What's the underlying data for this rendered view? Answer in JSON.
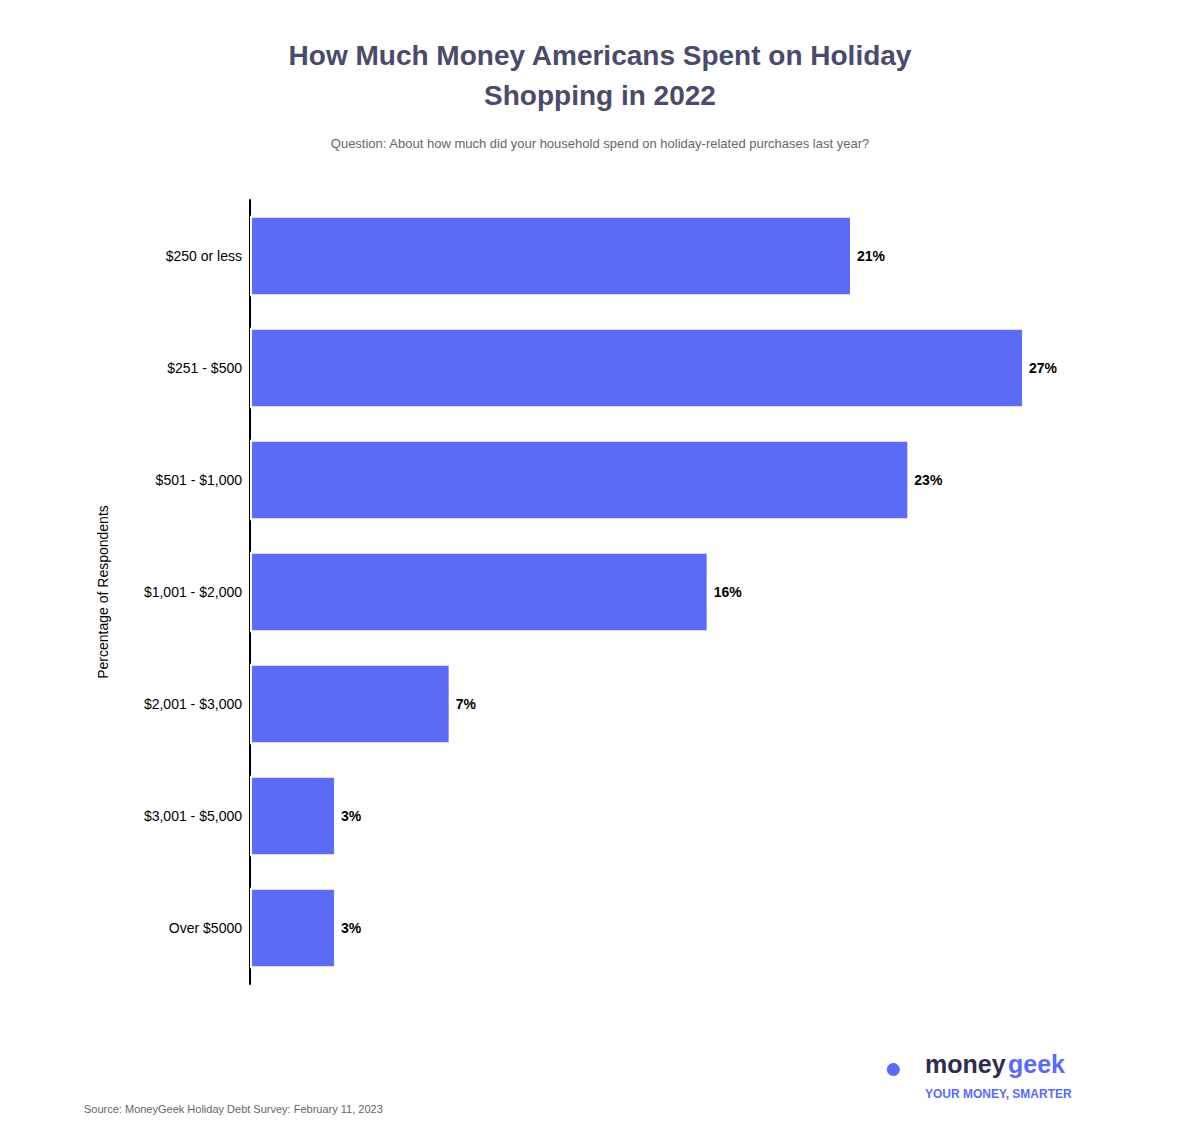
{
  "chart_data": {
    "type": "bar",
    "orientation": "horizontal",
    "title": "How Much Money Americans Spent on Holiday\nShopping in 2022",
    "subtitle": "Question: About how much did your household spend on holiday-related purchases last year?",
    "ylabel": "Percentage of Respondents",
    "categories": [
      "$250 or less",
      "$251 - $500",
      "$501 - $1,000",
      "$1,001 - $2,000",
      "$2,001 - $3,000",
      "$3,001 - $5,000",
      "Over $5000"
    ],
    "values": [
      21,
      27,
      23,
      16,
      7,
      3,
      3
    ],
    "value_labels": [
      "21%",
      "27%",
      "23%",
      "16%",
      "7%",
      "3%",
      "3%"
    ],
    "data_labels": true,
    "color": "#5B6BF5",
    "xlim": [
      0,
      30
    ],
    "tick_labels": "y",
    "grid": false,
    "annotations": [
      {
        "text": "Source: MoneyGeek Holiday Debt Survey: February 11, 2023",
        "color": "#666666"
      },
      {
        "text": "●",
        "color": "#5B6BF5"
      },
      {
        "text": "money",
        "color": "#2d2d4e"
      },
      {
        "text": "geek",
        "color": "#5B6BF5"
      },
      {
        "text": "YOUR MONEY, SMARTER",
        "color": "#5B6BF5"
      }
    ]
  }
}
